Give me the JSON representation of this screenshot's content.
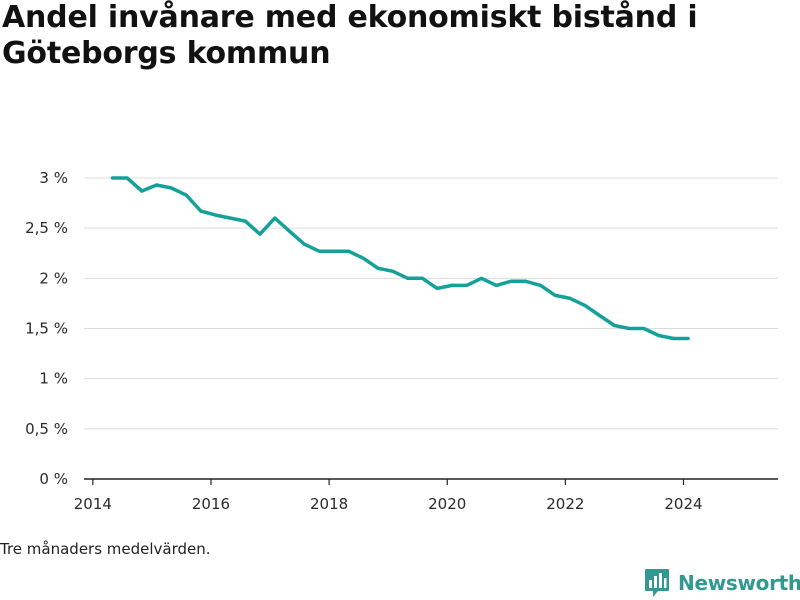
{
  "title": "Andel invånare med ekonomiskt bistånd i Göteborgs kommun",
  "footnote": "Tre månaders medelvärden.",
  "brand": {
    "name": "Newsworthy",
    "icon": "chart-logo-icon"
  },
  "colors": {
    "line": "#14a19a",
    "grid": "#dcdcdc",
    "axis": "#222222",
    "brand": "#31998f"
  },
  "chart_data": {
    "type": "line",
    "title": "Andel invånare med ekonomiskt bistånd i Göteborgs kommun",
    "xlabel": "",
    "ylabel": "",
    "xlim": [
      2013.85,
      2025.6
    ],
    "ylim": [
      0,
      3
    ],
    "grid": true,
    "x_ticks": [
      2014,
      2016,
      2018,
      2020,
      2022,
      2024
    ],
    "x_tick_labels": [
      "2014",
      "2016",
      "2018",
      "2020",
      "2022",
      "2024"
    ],
    "y_ticks": [
      0,
      0.5,
      1,
      1.5,
      2,
      2.5,
      3
    ],
    "y_tick_labels": [
      "0 %",
      "0,5 %",
      "1 %",
      "1,5 %",
      "2 %",
      "2,5 %",
      "3 %"
    ],
    "series": [
      {
        "x": [
          2014.33,
          2014.58,
          2014.83,
          2015.08,
          2015.33,
          2015.58,
          2015.83,
          2016.08,
          2016.33,
          2016.58,
          2016.83,
          2017.08,
          2017.33,
          2017.58,
          2017.83,
          2018.08,
          2018.33,
          2018.58,
          2018.83,
          2019.08,
          2019.33,
          2019.58,
          2019.83,
          2020.08,
          2020.33,
          2020.58,
          2020.83,
          2021.08,
          2021.33,
          2021.58,
          2021.83,
          2022.08,
          2022.33,
          2022.58,
          2022.83,
          2023.08,
          2023.33,
          2023.58,
          2023.83,
          2024.08
        ],
        "values": [
          3.0,
          3.0,
          2.87,
          2.93,
          2.9,
          2.83,
          2.67,
          2.63,
          2.6,
          2.57,
          2.44,
          2.6,
          2.47,
          2.34,
          2.27,
          2.27,
          2.27,
          2.2,
          2.1,
          2.07,
          2.0,
          2.0,
          1.9,
          1.93,
          1.93,
          2.0,
          1.93,
          1.97,
          1.97,
          1.93,
          1.83,
          1.8,
          1.73,
          1.63,
          1.53,
          1.5,
          1.5,
          1.43,
          1.4,
          1.4
        ]
      }
    ]
  }
}
